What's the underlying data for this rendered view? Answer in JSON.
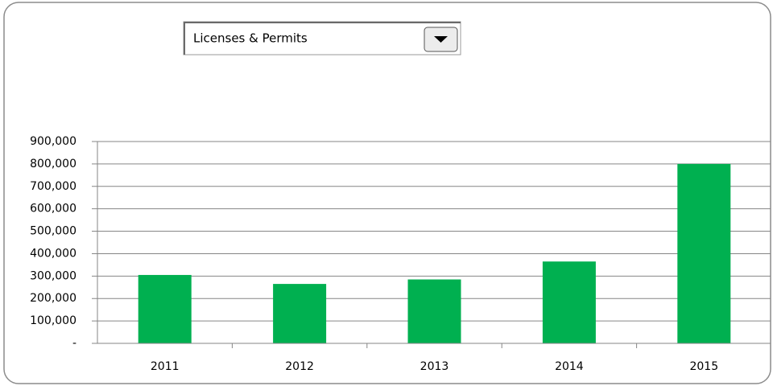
{
  "selector": {
    "selected": "Licenses & Permits"
  },
  "chart_data": {
    "type": "bar",
    "categories": [
      "2011",
      "2012",
      "2013",
      "2014",
      "2015"
    ],
    "values": [
      305000,
      265000,
      285000,
      365000,
      800000
    ],
    "color": "#00b050",
    "ylim": [
      0,
      900000
    ],
    "yticks": [
      {
        "value": 0,
        "label": "-"
      },
      {
        "value": 100000,
        "label": "100,000"
      },
      {
        "value": 200000,
        "label": "200,000"
      },
      {
        "value": 300000,
        "label": "300,000"
      },
      {
        "value": 400000,
        "label": "400,000"
      },
      {
        "value": 500000,
        "label": "500,000"
      },
      {
        "value": 600000,
        "label": "600,000"
      },
      {
        "value": 700000,
        "label": "700,000"
      },
      {
        "value": 800000,
        "label": "800,000"
      },
      {
        "value": 900000,
        "label": "900,000"
      }
    ],
    "grid": true
  }
}
